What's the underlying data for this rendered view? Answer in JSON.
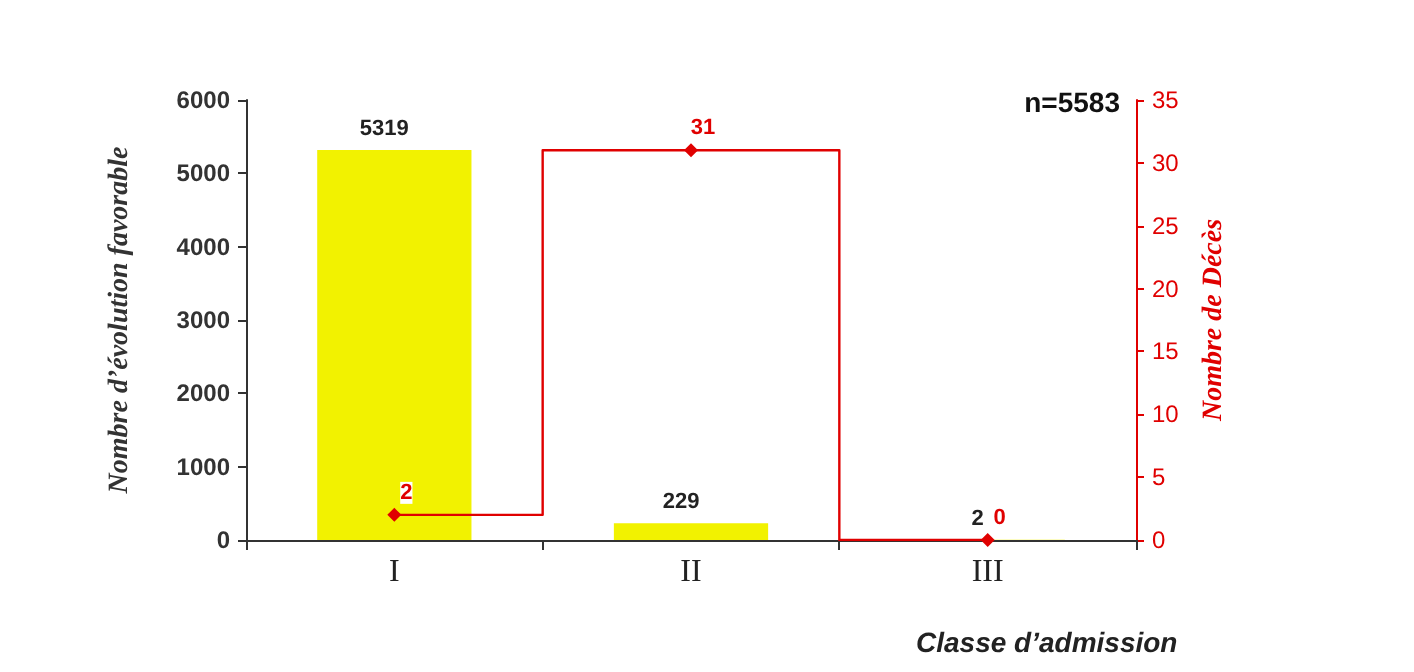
{
  "chart_data": {
    "type": "bar",
    "xlabel": "Classe d’admission",
    "ylabel": "Nombre d’évolution favorable",
    "y2label": "Nombre de Décès",
    "categories": [
      "I",
      "II",
      "III"
    ],
    "series": [
      {
        "color": "#f2f200",
        "values": [
          5319,
          229,
          2
        ]
      },
      {
        "type": "step",
        "axis": "y2",
        "color": "#e00000",
        "values": [
          2,
          31,
          0
        ],
        "marker": "diamond",
        "line_style": "solid"
      }
    ],
    "ylim": [
      0,
      6000
    ],
    "yticks": [
      0,
      1000,
      2000,
      3000,
      4000,
      5000,
      6000
    ],
    "y2lim": [
      0,
      35
    ],
    "y2ticks": [
      0,
      5,
      10,
      15,
      20,
      25,
      30,
      35
    ],
    "data_labels": true,
    "grid": false,
    "annotations": [
      "n=5583"
    ]
  }
}
